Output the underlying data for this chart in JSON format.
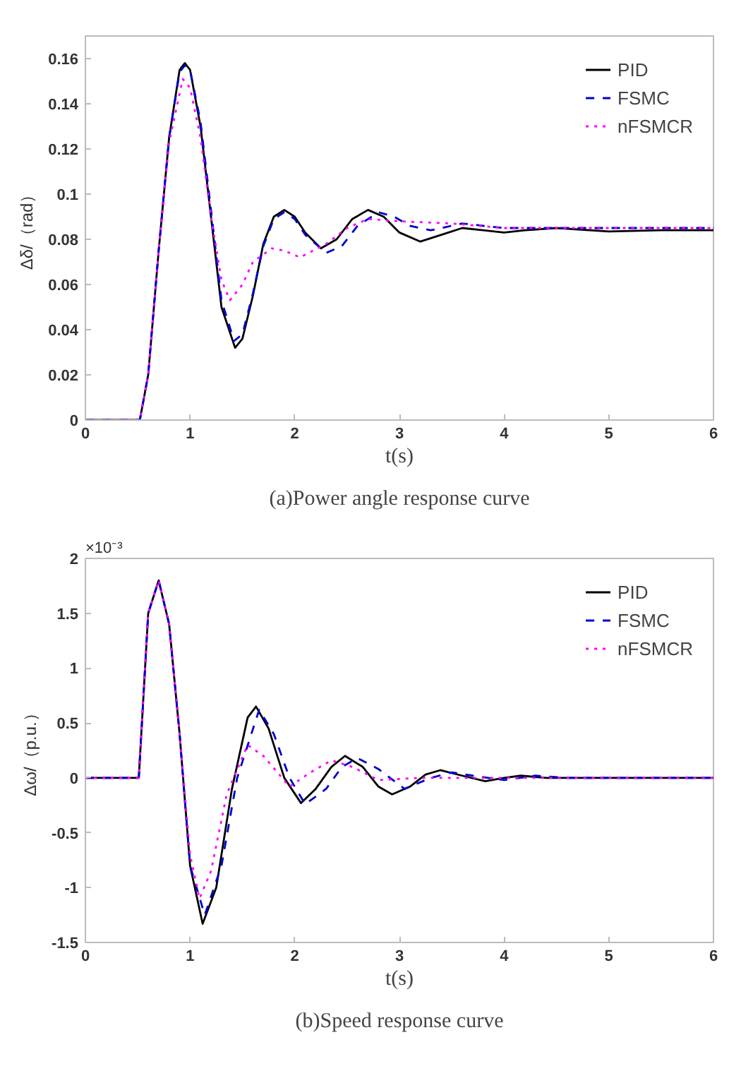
{
  "chart_data": [
    {
      "type": "line",
      "title": "(a)Power angle response curve",
      "xlabel": "t(s)",
      "ylabel": "Δδ/（rad）",
      "xlim": [
        0,
        6
      ],
      "ylim": [
        0,
        0.17
      ],
      "xticks": [
        0,
        1,
        2,
        3,
        4,
        5,
        6
      ],
      "yticks": [
        0,
        0.02,
        0.04,
        0.06,
        0.08,
        0.1,
        0.12,
        0.14,
        0.16
      ],
      "grid": false,
      "legend": "top right",
      "series": [
        {
          "name": "PID",
          "color": "#000000",
          "line_style": "solid",
          "x": [
            0,
            0.5,
            0.52,
            0.6,
            0.7,
            0.8,
            0.9,
            0.95,
            1.0,
            1.1,
            1.2,
            1.3,
            1.43,
            1.5,
            1.6,
            1.7,
            1.8,
            1.9,
            2.0,
            2.1,
            2.25,
            2.4,
            2.55,
            2.7,
            2.85,
            3.0,
            3.2,
            3.4,
            3.6,
            3.8,
            4.0,
            4.2,
            4.5,
            5.0,
            5.5,
            6
          ],
          "values": [
            0,
            0,
            0,
            0.02,
            0.075,
            0.125,
            0.155,
            0.158,
            0.155,
            0.13,
            0.09,
            0.05,
            0.032,
            0.036,
            0.055,
            0.078,
            0.09,
            0.093,
            0.09,
            0.083,
            0.076,
            0.08,
            0.089,
            0.093,
            0.09,
            0.083,
            0.079,
            0.082,
            0.085,
            0.084,
            0.083,
            0.084,
            0.085,
            0.0835,
            0.084,
            0.084
          ]
        },
        {
          "name": "FSMC",
          "color": "#0000cc",
          "line_style": "dashed",
          "x": [
            0,
            0.5,
            0.52,
            0.6,
            0.7,
            0.8,
            0.9,
            0.95,
            1.0,
            1.1,
            1.2,
            1.3,
            1.42,
            1.5,
            1.6,
            1.7,
            1.8,
            1.9,
            2.0,
            2.1,
            2.3,
            2.45,
            2.6,
            2.8,
            2.95,
            3.1,
            3.3,
            3.6,
            4.0,
            4.5,
            5.0,
            6
          ],
          "values": [
            0,
            0,
            0,
            0.02,
            0.075,
            0.125,
            0.154,
            0.157,
            0.155,
            0.132,
            0.093,
            0.053,
            0.035,
            0.038,
            0.056,
            0.077,
            0.089,
            0.092,
            0.089,
            0.082,
            0.074,
            0.077,
            0.086,
            0.092,
            0.09,
            0.086,
            0.084,
            0.087,
            0.085,
            0.085,
            0.085,
            0.085
          ]
        },
        {
          "name": "nFSMCR",
          "color": "#ff00ff",
          "line_style": "dotted",
          "x": [
            0,
            0.5,
            0.52,
            0.6,
            0.7,
            0.8,
            0.93,
            1.0,
            1.1,
            1.2,
            1.3,
            1.38,
            1.5,
            1.6,
            1.78,
            1.9,
            2.05,
            2.3,
            2.5,
            2.7,
            3.0,
            3.5,
            4.0,
            4.5,
            5.0,
            6
          ],
          "values": [
            0,
            0,
            0,
            0.02,
            0.075,
            0.123,
            0.151,
            0.147,
            0.125,
            0.09,
            0.062,
            0.053,
            0.06,
            0.07,
            0.076,
            0.075,
            0.072,
            0.078,
            0.085,
            0.089,
            0.088,
            0.087,
            0.085,
            0.085,
            0.085,
            0.085
          ]
        }
      ]
    },
    {
      "type": "line",
      "title": "(b)Speed response curve",
      "xlabel": "t(s)",
      "ylabel": "Δω/（p.u.）",
      "annotations": [
        "×10⁻³"
      ],
      "xlim": [
        0,
        6
      ],
      "ylim": [
        -1.5,
        2
      ],
      "xticks": [
        0,
        1,
        2,
        3,
        4,
        5,
        6
      ],
      "yticks": [
        -1.5,
        -1,
        -0.5,
        0,
        0.5,
        1,
        1.5,
        2
      ],
      "grid": false,
      "legend": "top right",
      "series": [
        {
          "name": "PID",
          "color": "#000000",
          "line_style": "solid",
          "x": [
            0,
            0.5,
            0.51,
            0.6,
            0.7,
            0.8,
            0.9,
            1.0,
            1.12,
            1.25,
            1.4,
            1.55,
            1.63,
            1.75,
            1.9,
            2.06,
            2.2,
            2.35,
            2.48,
            2.65,
            2.8,
            2.93,
            3.1,
            3.25,
            3.39,
            3.6,
            3.82,
            4.0,
            4.16,
            4.4,
            5.0,
            6
          ],
          "values": [
            0,
            0,
            0,
            1.5,
            1.8,
            1.4,
            0.4,
            -0.8,
            -1.33,
            -1.0,
            -0.1,
            0.55,
            0.65,
            0.45,
            0.0,
            -0.23,
            -0.1,
            0.1,
            0.2,
            0.1,
            -0.08,
            -0.15,
            -0.08,
            0.03,
            0.07,
            0.02,
            -0.03,
            0.0,
            0.02,
            0.0,
            0.0,
            0.0
          ]
        },
        {
          "name": "FSMC",
          "color": "#0000cc",
          "line_style": "dashed",
          "x": [
            0,
            0.5,
            0.51,
            0.6,
            0.7,
            0.8,
            0.9,
            1.0,
            1.14,
            1.3,
            1.45,
            1.66,
            1.8,
            1.95,
            2.1,
            2.3,
            2.45,
            2.6,
            2.8,
            3.05,
            3.3,
            3.5,
            3.7,
            4.0,
            4.3,
            4.6,
            5.0,
            6
          ],
          "values": [
            0,
            0,
            0,
            1.5,
            1.8,
            1.4,
            0.4,
            -0.8,
            -1.25,
            -0.8,
            0.0,
            0.62,
            0.4,
            0.0,
            -0.24,
            -0.1,
            0.1,
            0.18,
            0.08,
            -0.1,
            0.0,
            0.05,
            0.02,
            -0.02,
            0.02,
            0.0,
            0.0,
            0.0
          ]
        },
        {
          "name": "nFSMCR",
          "color": "#ff00ff",
          "line_style": "dotted",
          "x": [
            0,
            0.5,
            0.51,
            0.6,
            0.7,
            0.8,
            0.9,
            1.0,
            1.09,
            1.2,
            1.35,
            1.55,
            1.7,
            1.95,
            2.15,
            2.35,
            2.55,
            2.8,
            3.2,
            4.0,
            5.0,
            6
          ],
          "values": [
            0,
            0,
            0,
            1.5,
            1.8,
            1.4,
            0.4,
            -0.7,
            -1.1,
            -0.85,
            -0.15,
            0.3,
            0.2,
            -0.08,
            0.05,
            0.16,
            0.1,
            -0.02,
            0.0,
            0.0,
            0.0,
            0.0
          ]
        }
      ]
    }
  ]
}
